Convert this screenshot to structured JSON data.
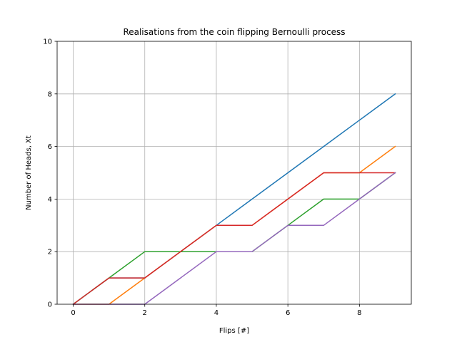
{
  "chart_data": {
    "type": "line",
    "title": "Realisations from the coin flipping Bernoulli process",
    "xlabel": "Flips [#]",
    "ylabel": "Number of Heads, Xt",
    "xlim": [
      -0.45,
      9.45
    ],
    "ylim": [
      0,
      10
    ],
    "xticks": [
      0,
      2,
      4,
      6,
      8
    ],
    "yticks": [
      0,
      2,
      4,
      6,
      8,
      10
    ],
    "grid": true,
    "x": [
      0,
      1,
      2,
      3,
      4,
      5,
      6,
      7,
      8,
      9
    ],
    "series": [
      {
        "color": "#1f77b4",
        "values": [
          0,
          1,
          1,
          2,
          3,
          4,
          5,
          6,
          7,
          8
        ]
      },
      {
        "color": "#ff7f0e",
        "values": [
          0,
          0,
          1,
          2,
          3,
          3,
          4,
          5,
          5,
          6
        ]
      },
      {
        "color": "#2ca02c",
        "values": [
          0,
          1,
          2,
          2,
          2,
          2,
          3,
          4,
          4,
          5
        ]
      },
      {
        "color": "#d62728",
        "values": [
          0,
          1,
          1,
          2,
          3,
          3,
          4,
          5,
          5,
          5
        ]
      },
      {
        "color": "#9467bd",
        "values": [
          0,
          0,
          0,
          1,
          2,
          2,
          3,
          3,
          4,
          5
        ]
      }
    ]
  }
}
